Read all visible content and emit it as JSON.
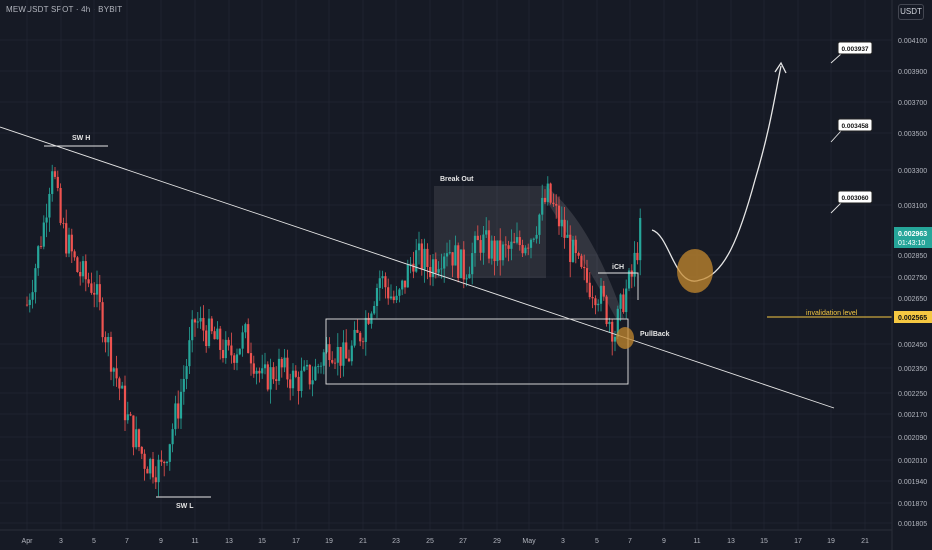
{
  "header": {
    "symbol_line": "MEWUSDT SPOT · 4h · BYBIT",
    "unit": "USDT"
  },
  "colors": {
    "background": "#161a25",
    "up_candle": "#26a69a",
    "down_candle": "#ef5350",
    "drawing": "#e6e6e6",
    "orange_marker": "#c68a2e",
    "current_price_bg": "#26a69a",
    "invalidation": "#f5c842"
  },
  "chart_data": {
    "type": "candlestick",
    "timeframe": "4h",
    "x_tick_labels": [
      "Apr",
      "3",
      "5",
      "7",
      "9",
      "11",
      "13",
      "15",
      "17",
      "19",
      "21",
      "23",
      "25",
      "27",
      "29",
      "May",
      "3",
      "5",
      "7",
      "9",
      "11",
      "13",
      "15",
      "17",
      "19",
      "21"
    ],
    "y_tick_labels": [
      "0.004100",
      "0.003900",
      "0.003700",
      "0.003500",
      "0.003300",
      "0.003100",
      "0.002850",
      "0.002750",
      "0.002650",
      "0.002450",
      "0.002350",
      "0.002250",
      "0.002170",
      "0.002090",
      "0.002010",
      "0.001940",
      "0.001870",
      "0.001805"
    ],
    "y_scale": "log",
    "series_path_close": [
      {
        "date": "Apr 1",
        "close": 0.00262
      },
      {
        "date": "Apr 2",
        "close": 0.003
      },
      {
        "date": "Apr 2 12:00",
        "close": 0.00335
      },
      {
        "date": "Apr 3",
        "close": 0.003
      },
      {
        "date": "Apr 4",
        "close": 0.00278
      },
      {
        "date": "Apr 5",
        "close": 0.0027
      },
      {
        "date": "Apr 6",
        "close": 0.0024
      },
      {
        "date": "Apr 7",
        "close": 0.00215
      },
      {
        "date": "Apr 8",
        "close": 0.00201
      },
      {
        "date": "Apr 9",
        "close": 0.00198
      },
      {
        "date": "Apr 10",
        "close": 0.0022
      },
      {
        "date": "Apr 11",
        "close": 0.00255
      },
      {
        "date": "Apr 12",
        "close": 0.00248
      },
      {
        "date": "Apr 13",
        "close": 0.0024
      },
      {
        "date": "Apr 14",
        "close": 0.00248
      },
      {
        "date": "Apr 15",
        "close": 0.0023
      },
      {
        "date": "Apr 16",
        "close": 0.00235
      },
      {
        "date": "Apr 17",
        "close": 0.0023
      },
      {
        "date": "Apr 18",
        "close": 0.00232
      },
      {
        "date": "Apr 19",
        "close": 0.00245
      },
      {
        "date": "Apr 20",
        "close": 0.00238
      },
      {
        "date": "Apr 21",
        "close": 0.00252
      },
      {
        "date": "Apr 22",
        "close": 0.00275
      },
      {
        "date": "Apr 23",
        "close": 0.00262
      },
      {
        "date": "Apr 24",
        "close": 0.00285
      },
      {
        "date": "Apr 25",
        "close": 0.0028
      },
      {
        "date": "Apr 26",
        "close": 0.0029
      },
      {
        "date": "Apr 27",
        "close": 0.00278
      },
      {
        "date": "Apr 28",
        "close": 0.00292
      },
      {
        "date": "Apr 29",
        "close": 0.00285
      },
      {
        "date": "Apr 30",
        "close": 0.00288
      },
      {
        "date": "May 1",
        "close": 0.00295
      },
      {
        "date": "May 2",
        "close": 0.00315
      },
      {
        "date": "May 3",
        "close": 0.00295
      },
      {
        "date": "May 4",
        "close": 0.00275
      },
      {
        "date": "May 5",
        "close": 0.00268
      },
      {
        "date": "May 6",
        "close": 0.0025
      },
      {
        "date": "May 6 12:00",
        "close": 0.00265
      },
      {
        "date": "May 7",
        "close": 0.00275
      },
      {
        "date": "May 7 12:00",
        "close": 0.002963
      }
    ],
    "annotations": {
      "swing_high": "SW H",
      "swing_low": "SW L",
      "break_out": "Break Out",
      "ich": "iCH",
      "pullback": "PullBack",
      "invalidation": "invalidation level",
      "targets": [
        "0.003937",
        "0.003458",
        "0.003060"
      ]
    },
    "current_price": {
      "value": "0.002963",
      "countdown": "01:43:10"
    },
    "invalidation_price": "0.002565"
  }
}
